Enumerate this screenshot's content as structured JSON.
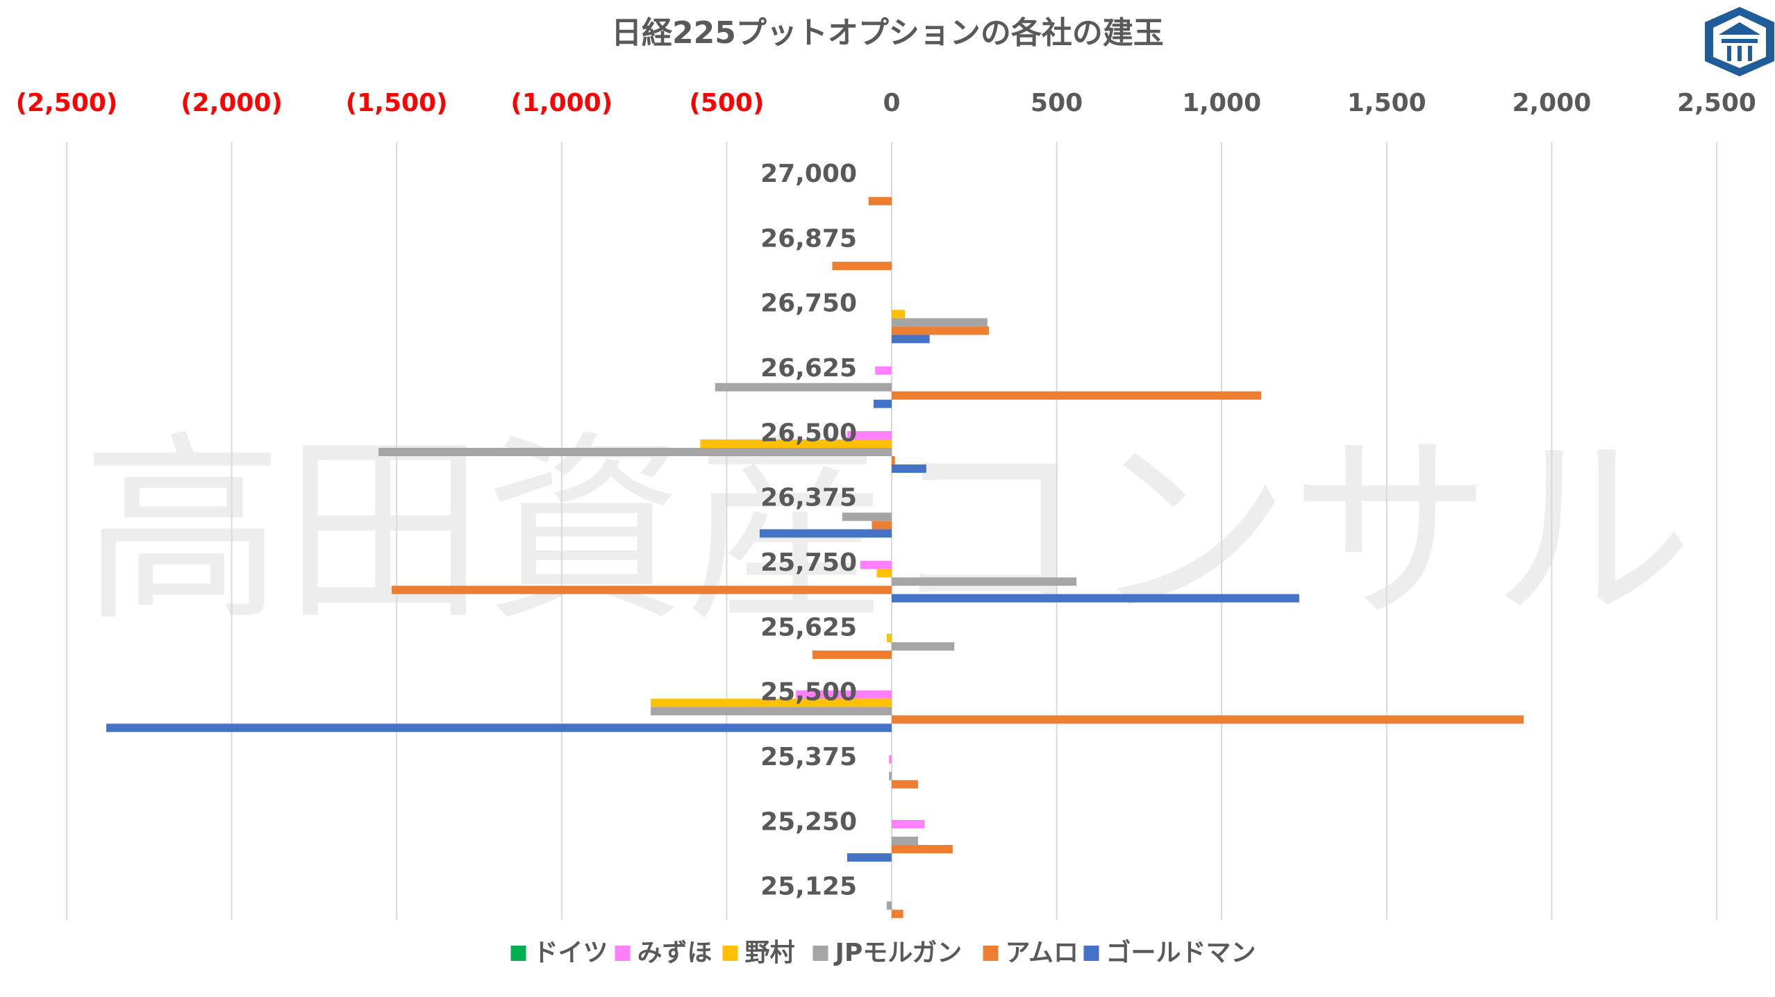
{
  "chart_data": {
    "type": "bar",
    "orientation": "horizontal",
    "title": "日経225プットオプションの各社の建玉",
    "watermark": "高田資産コンサル",
    "xlim": [
      -2500,
      2500
    ],
    "x_ticks": [
      {
        "value": -2500,
        "label": "(2,500)"
      },
      {
        "value": -2000,
        "label": "(2,000)"
      },
      {
        "value": -1500,
        "label": "(1,500)"
      },
      {
        "value": -1000,
        "label": "(1,000)"
      },
      {
        "value": -500,
        "label": "(500)"
      },
      {
        "value": 0,
        "label": "0"
      },
      {
        "value": 500,
        "label": "500"
      },
      {
        "value": 1000,
        "label": "1,000"
      },
      {
        "value": 1500,
        "label": "1,500"
      },
      {
        "value": 2000,
        "label": "2,000"
      },
      {
        "value": 2500,
        "label": "2,500"
      }
    ],
    "categories": [
      "27,000",
      "26,875",
      "26,750",
      "26,625",
      "26,500",
      "26,375",
      "25,750",
      "25,625",
      "25,500",
      "25,375",
      "25,250",
      "25,125"
    ],
    "series": [
      {
        "name": "ドイツ",
        "color": "#00B050",
        "values": [
          0,
          0,
          0,
          0,
          0,
          0,
          0,
          0,
          0,
          0,
          0,
          0
        ]
      },
      {
        "name": "みずほ",
        "color": "#FF80FF",
        "values": [
          0,
          0,
          0,
          -50,
          -135,
          0,
          -95,
          0,
          -290,
          -8,
          100,
          0
        ]
      },
      {
        "name": "野村",
        "color": "#FFC000",
        "values": [
          0,
          0,
          40,
          0,
          -580,
          0,
          -45,
          -15,
          -730,
          0,
          0,
          0
        ]
      },
      {
        "name": "JPモルガン",
        "color": "#A5A5A5",
        "values": [
          0,
          0,
          290,
          -535,
          -1555,
          -150,
          560,
          190,
          -730,
          -8,
          80,
          -15
        ]
      },
      {
        "name": "アムロ",
        "color": "#ED7D31",
        "values": [
          -70,
          -180,
          295,
          1120,
          10,
          -60,
          -1515,
          -240,
          1915,
          80,
          185,
          35
        ]
      },
      {
        "name": "ゴールドマン",
        "color": "#4472C4",
        "values": [
          0,
          0,
          115,
          -55,
          105,
          -400,
          1235,
          0,
          -2380,
          0,
          -135,
          0
        ]
      }
    ],
    "colors": {
      "negative_tick_label": "#FF0000",
      "positive_tick_label": "#595959",
      "title": "#595959",
      "gridline": "#D9D9D9",
      "logo": "#1F5C99"
    }
  }
}
